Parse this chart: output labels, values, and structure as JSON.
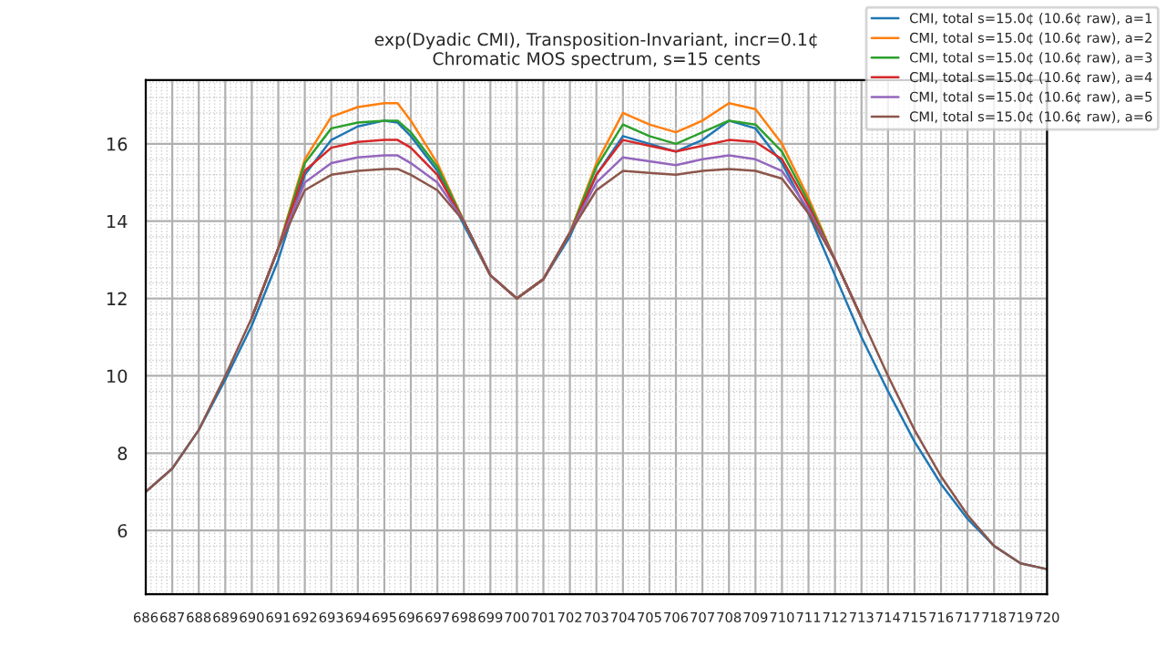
{
  "chart_data": {
    "type": "line",
    "title": "exp(Dyadic CMI), Transposition-Invariant, incr=0.1¢\nChromatic MOS spectrum, s=15 cents",
    "x": [
      686,
      687,
      688,
      689,
      690,
      691,
      692,
      693,
      694,
      695,
      695.5,
      696,
      697,
      698,
      699,
      700,
      701,
      702,
      703,
      704,
      705,
      706,
      707,
      708,
      709,
      710,
      711,
      712,
      713,
      714,
      715,
      716,
      717,
      718,
      719,
      720
    ],
    "series": [
      {
        "name": "CMI, total s=15.0¢ (10.6¢ raw), a=1",
        "color": "#1f77b4",
        "values": [
          7.0,
          7.6,
          8.6,
          9.9,
          11.3,
          13.0,
          15.2,
          16.1,
          16.45,
          16.6,
          16.55,
          16.2,
          15.3,
          13.9,
          12.6,
          12.0,
          12.5,
          13.6,
          15.2,
          16.2,
          16.0,
          15.8,
          16.1,
          16.6,
          16.4,
          15.5,
          14.2,
          12.6,
          11.0,
          9.6,
          8.3,
          7.2,
          6.3,
          5.6,
          5.15,
          5.0
        ]
      },
      {
        "name": "CMI, total s=15.0¢ (10.6¢ raw), a=2",
        "color": "#ff7f0e",
        "values": [
          null,
          null,
          null,
          null,
          11.5,
          13.3,
          15.6,
          16.7,
          16.95,
          17.05,
          17.05,
          16.6,
          15.5,
          14.0,
          12.6,
          12.0,
          12.5,
          13.7,
          15.5,
          16.8,
          16.5,
          16.3,
          16.6,
          17.05,
          16.9,
          16.0,
          14.6,
          13.0,
          11.5,
          null,
          null,
          null,
          null,
          null,
          null,
          null
        ]
      },
      {
        "name": "CMI, total s=15.0¢ (10.6¢ raw), a=3",
        "color": "#2ca02c",
        "values": [
          null,
          null,
          null,
          null,
          11.5,
          13.3,
          15.5,
          16.4,
          16.55,
          16.6,
          16.6,
          16.3,
          15.4,
          14.0,
          12.6,
          12.0,
          12.5,
          13.7,
          15.4,
          16.5,
          16.2,
          16.0,
          16.3,
          16.6,
          16.5,
          15.8,
          14.5,
          13.0,
          11.5,
          null,
          null,
          null,
          null,
          null,
          null,
          null
        ]
      },
      {
        "name": "CMI, total s=15.0¢ (10.6¢ raw), a=4",
        "color": "#d62728",
        "values": [
          null,
          null,
          null,
          null,
          11.5,
          13.3,
          15.3,
          15.9,
          16.05,
          16.1,
          16.1,
          15.9,
          15.2,
          14.0,
          12.6,
          12.0,
          12.5,
          13.7,
          15.2,
          16.1,
          15.95,
          15.8,
          15.95,
          16.1,
          16.05,
          15.6,
          14.4,
          13.0,
          11.5,
          null,
          null,
          null,
          null,
          null,
          null,
          null
        ]
      },
      {
        "name": "CMI, total s=15.0¢ (10.6¢ raw), a=5",
        "color": "#9467bd",
        "values": [
          null,
          null,
          null,
          null,
          11.5,
          13.3,
          15.0,
          15.5,
          15.65,
          15.7,
          15.7,
          15.5,
          15.0,
          14.0,
          12.6,
          12.0,
          12.5,
          13.7,
          15.0,
          15.65,
          15.55,
          15.45,
          15.6,
          15.7,
          15.6,
          15.3,
          14.3,
          13.0,
          11.5,
          null,
          null,
          null,
          null,
          null,
          null,
          null
        ]
      },
      {
        "name": "CMI, total s=15.0¢ (10.6¢ raw), a=6",
        "color": "#8c564b",
        "values": [
          7.0,
          7.6,
          8.6,
          10.0,
          11.5,
          13.3,
          14.8,
          15.2,
          15.3,
          15.35,
          15.35,
          15.2,
          14.8,
          14.0,
          12.6,
          12.0,
          12.5,
          13.7,
          14.8,
          15.3,
          15.25,
          15.2,
          15.3,
          15.35,
          15.3,
          15.1,
          14.2,
          13.0,
          11.5,
          10.0,
          8.6,
          7.4,
          6.4,
          5.6,
          5.15,
          5.0
        ]
      }
    ],
    "xlim": [
      686,
      720
    ],
    "xticks": [
      686,
      687,
      688,
      689,
      690,
      691,
      692,
      693,
      694,
      695,
      696,
      697,
      698,
      699,
      700,
      701,
      702,
      703,
      704,
      705,
      706,
      707,
      708,
      709,
      710,
      711,
      712,
      713,
      714,
      715,
      716,
      717,
      718,
      719,
      720
    ],
    "ylim": [
      4.35,
      17.65
    ],
    "yticks": [
      6,
      8,
      10,
      12,
      14,
      16
    ],
    "grid": true,
    "legend": "top right"
  }
}
